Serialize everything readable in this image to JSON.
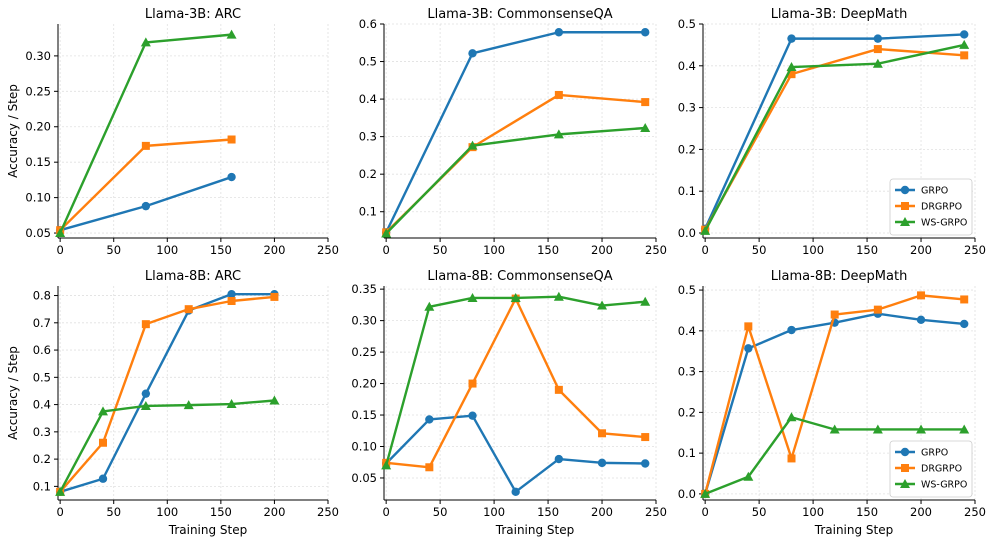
{
  "colors": {
    "GRPO": "#1f77b4",
    "DRGRPO": "#ff7f0e",
    "WS-GRPO": "#2ca02c",
    "grid": "#e0e0e0",
    "axis": "#000000"
  },
  "legend_labels": [
    "GRPO",
    "DRGRPO",
    "WS-GRPO"
  ],
  "chart_data": [
    {
      "type": "line",
      "title": "Llama-3B: ARC",
      "xlabel": "",
      "ylabel": "Accuracy / Step",
      "xlim": [
        -2,
        250
      ],
      "ylim": [
        0.043,
        0.345
      ],
      "xticks": [
        0,
        50,
        100,
        150,
        200,
        250
      ],
      "yticks": [
        0.05,
        0.1,
        0.15,
        0.2,
        0.25,
        0.3
      ],
      "ytick_labels": [
        "0.05",
        "0.10",
        "0.15",
        "0.20",
        "0.25",
        "0.30"
      ],
      "legend": "none",
      "series": [
        {
          "name": "GRPO",
          "x": [
            0,
            80,
            160
          ],
          "y": [
            0.054,
            0.088,
            0.129
          ]
        },
        {
          "name": "DRGRPO",
          "x": [
            0,
            80,
            160
          ],
          "y": [
            0.054,
            0.173,
            0.182
          ]
        },
        {
          "name": "WS-GRPO",
          "x": [
            0,
            80,
            160
          ],
          "y": [
            0.05,
            0.319,
            0.33
          ]
        }
      ]
    },
    {
      "type": "line",
      "title": "Llama-3B: CommonsenseQA",
      "xlabel": "",
      "ylabel": "",
      "xlim": [
        -2,
        250
      ],
      "ylim": [
        0.03,
        0.6
      ],
      "xticks": [
        0,
        50,
        100,
        150,
        200,
        250
      ],
      "yticks": [
        0.1,
        0.2,
        0.3,
        0.4,
        0.5,
        0.6
      ],
      "ytick_labels": [
        "0.1",
        "0.2",
        "0.3",
        "0.4",
        "0.5",
        "0.6"
      ],
      "legend": "none",
      "series": [
        {
          "name": "GRPO",
          "x": [
            0,
            80,
            160,
            240
          ],
          "y": [
            0.045,
            0.522,
            0.578,
            0.578
          ]
        },
        {
          "name": "DRGRPO",
          "x": [
            0,
            80,
            160,
            240
          ],
          "y": [
            0.045,
            0.272,
            0.411,
            0.392
          ]
        },
        {
          "name": "WS-GRPO",
          "x": [
            0,
            80,
            160,
            240
          ],
          "y": [
            0.042,
            0.276,
            0.306,
            0.323
          ]
        }
      ]
    },
    {
      "type": "line",
      "title": "Llama-3B: DeepMath",
      "xlabel": "",
      "ylabel": "",
      "xlim": [
        -2,
        250
      ],
      "ylim": [
        -0.012,
        0.5
      ],
      "xticks": [
        0,
        50,
        100,
        150,
        200,
        250
      ],
      "yticks": [
        0.0,
        0.1,
        0.2,
        0.3,
        0.4,
        0.5
      ],
      "ytick_labels": [
        "0.0",
        "0.1",
        "0.2",
        "0.3",
        "0.4",
        "0.5"
      ],
      "legend": "lower-right",
      "series": [
        {
          "name": "GRPO",
          "x": [
            0,
            80,
            160,
            240
          ],
          "y": [
            0.01,
            0.465,
            0.465,
            0.475
          ]
        },
        {
          "name": "DRGRPO",
          "x": [
            0,
            80,
            160,
            240
          ],
          "y": [
            0.008,
            0.38,
            0.44,
            0.425
          ]
        },
        {
          "name": "WS-GRPO",
          "x": [
            0,
            80,
            160,
            240
          ],
          "y": [
            0.005,
            0.397,
            0.405,
            0.45
          ]
        }
      ]
    },
    {
      "type": "line",
      "title": "Llama-8B: ARC",
      "xlabel": "Training Step",
      "ylabel": "Accuracy / Step",
      "xlim": [
        -2,
        250
      ],
      "ylim": [
        0.05,
        0.835
      ],
      "xticks": [
        0,
        50,
        100,
        150,
        200,
        250
      ],
      "yticks": [
        0.1,
        0.2,
        0.3,
        0.4,
        0.5,
        0.6,
        0.7,
        0.8
      ],
      "ytick_labels": [
        "0.1",
        "0.2",
        "0.3",
        "0.4",
        "0.5",
        "0.6",
        "0.7",
        "0.8"
      ],
      "legend": "none",
      "series": [
        {
          "name": "GRPO",
          "x": [
            0,
            40,
            80,
            120,
            160,
            200
          ],
          "y": [
            0.08,
            0.128,
            0.44,
            0.745,
            0.805,
            0.805
          ]
        },
        {
          "name": "DRGRPO",
          "x": [
            0,
            40,
            80,
            120,
            160,
            200
          ],
          "y": [
            0.08,
            0.26,
            0.695,
            0.75,
            0.78,
            0.795
          ]
        },
        {
          "name": "WS-GRPO",
          "x": [
            0,
            40,
            80,
            120,
            160,
            200
          ],
          "y": [
            0.08,
            0.375,
            0.395,
            0.398,
            0.402,
            0.415
          ]
        }
      ]
    },
    {
      "type": "line",
      "title": "Llama-8B: CommonsenseQA",
      "xlabel": "Training Step",
      "ylabel": "",
      "xlim": [
        -2,
        250
      ],
      "ylim": [
        0.015,
        0.355
      ],
      "xticks": [
        0,
        50,
        100,
        150,
        200,
        250
      ],
      "yticks": [
        0.05,
        0.1,
        0.15,
        0.2,
        0.25,
        0.3,
        0.35
      ],
      "ytick_labels": [
        "0.05",
        "0.10",
        "0.15",
        "0.20",
        "0.25",
        "0.30",
        "0.35"
      ],
      "legend": "none",
      "series": [
        {
          "name": "GRPO",
          "x": [
            0,
            40,
            80,
            120,
            160,
            200,
            240
          ],
          "y": [
            0.073,
            0.143,
            0.149,
            0.028,
            0.08,
            0.074,
            0.073
          ]
        },
        {
          "name": "DRGRPO",
          "x": [
            0,
            40,
            80,
            120,
            160,
            200,
            240
          ],
          "y": [
            0.074,
            0.067,
            0.2,
            0.335,
            0.19,
            0.121,
            0.115
          ]
        },
        {
          "name": "WS-GRPO",
          "x": [
            0,
            40,
            80,
            120,
            160,
            200,
            240
          ],
          "y": [
            0.07,
            0.322,
            0.336,
            0.336,
            0.338,
            0.324,
            0.33
          ]
        }
      ]
    },
    {
      "type": "line",
      "title": "Llama-8B: DeepMath",
      "xlabel": "Training Step",
      "ylabel": "",
      "xlim": [
        -2,
        250
      ],
      "ylim": [
        -0.015,
        0.51
      ],
      "xticks": [
        0,
        50,
        100,
        150,
        200,
        250
      ],
      "yticks": [
        0.0,
        0.1,
        0.2,
        0.3,
        0.4,
        0.5
      ],
      "ytick_labels": [
        "0.0",
        "0.1",
        "0.2",
        "0.3",
        "0.4",
        "0.5"
      ],
      "legend": "lower-right",
      "series": [
        {
          "name": "GRPO",
          "x": [
            0,
            40,
            80,
            120,
            160,
            200,
            240
          ],
          "y": [
            0.0,
            0.357,
            0.402,
            0.42,
            0.442,
            0.427,
            0.417
          ]
        },
        {
          "name": "DRGRPO",
          "x": [
            0,
            40,
            80,
            120,
            160,
            200,
            240
          ],
          "y": [
            0.0,
            0.411,
            0.087,
            0.44,
            0.452,
            0.487,
            0.477
          ]
        },
        {
          "name": "WS-GRPO",
          "x": [
            0,
            40,
            80,
            120,
            160,
            200,
            240
          ],
          "y": [
            0.0,
            0.042,
            0.188,
            0.158,
            0.158,
            0.158,
            0.158
          ]
        }
      ]
    }
  ]
}
